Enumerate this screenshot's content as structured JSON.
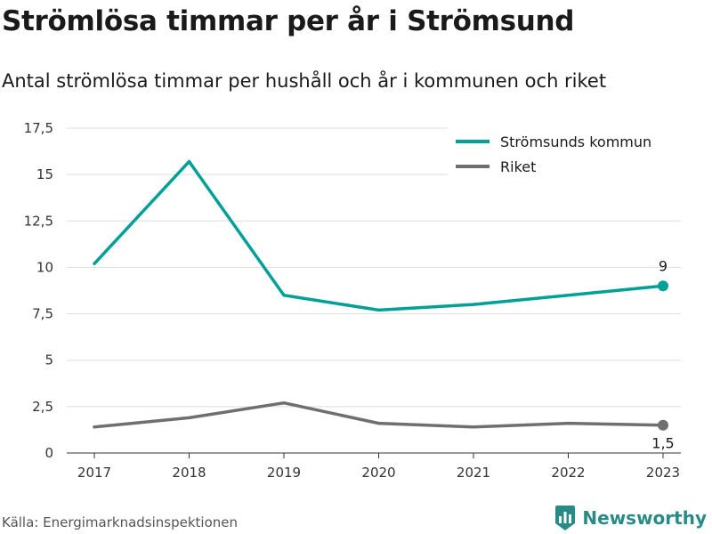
{
  "title": "Strömlösa timmar per år i Strömsund",
  "subtitle": "Antal strömlösa timmar per hushåll och år i kommunen och riket",
  "source": "Källa: Energimarknadsinspektionen",
  "brand": "Newsworthy",
  "colors": {
    "kommun": "#00a096",
    "riket": "#6e6e73",
    "brand": "#2a8a86",
    "grid": "#dddddd"
  },
  "chart_data": {
    "type": "line",
    "x": [
      "2017",
      "2018",
      "2019",
      "2020",
      "2021",
      "2022",
      "2023"
    ],
    "ylim": [
      0,
      17.5
    ],
    "yticks": [
      0,
      2.5,
      5,
      7.5,
      10,
      12.5,
      15,
      17.5
    ],
    "ytick_labels": [
      "0",
      "2,5",
      "5",
      "7,5",
      "10",
      "12,5",
      "15",
      "17,5"
    ],
    "grid": true,
    "legend": "top-right",
    "series": [
      {
        "name": "Strömsunds kommun",
        "color": "#00a096",
        "values": [
          10.2,
          15.7,
          8.5,
          7.7,
          8.0,
          8.5,
          9.0
        ],
        "end_label": "9"
      },
      {
        "name": "Riket",
        "color": "#6e6e73",
        "values": [
          1.4,
          1.9,
          2.7,
          1.6,
          1.4,
          1.6,
          1.5
        ],
        "end_label": "1,5"
      }
    ]
  }
}
